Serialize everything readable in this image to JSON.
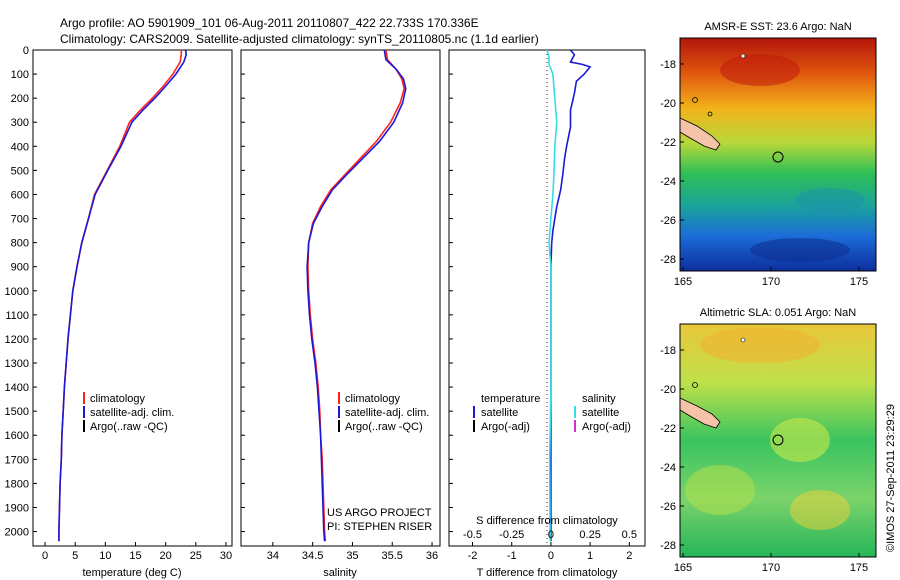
{
  "header": {
    "line1": "Argo profile: AO 5901909_101 06-Aug-2011 20110807_422 22.733S 170.336E",
    "line2": "Climatology: CARS2009. Satellite-adjusted climatology: synTS_20110805.nc (1.1d earlier)"
  },
  "credits": {
    "project": "US ARGO PROJECT",
    "pi": "PI: STEPHEN RISER",
    "stamp": "©IMOS 27-Sep-2011 23:29:29"
  },
  "colors": {
    "climatology": "#ff2020",
    "satellite": "#1a1ad6",
    "argo": "#000000",
    "sal_satellite": "#33dde6",
    "sal_argo": "#cc33cc"
  },
  "legend": {
    "climatology": "climatology",
    "satellite_clim": "satellite-adj. clim.",
    "argo_raw": "Argo(..raw -QC)",
    "temperature": "temperature",
    "salinity": "salinity",
    "satellite": "satellite",
    "argo_adj": "Argo(-adj)"
  },
  "chart_data": [
    {
      "type": "line",
      "xlabel": "temperature (deg C)",
      "xlim": [
        -2,
        31
      ],
      "xticks": [
        0,
        5,
        10,
        15,
        20,
        25,
        30
      ],
      "ylim": [
        0,
        2060
      ],
      "yticks": [
        0,
        100,
        200,
        300,
        400,
        500,
        600,
        700,
        800,
        900,
        1000,
        1100,
        1200,
        1300,
        1400,
        1500,
        1600,
        1700,
        1800,
        1900,
        2000
      ],
      "series": [
        {
          "name": "climatology",
          "color": "red",
          "points": [
            [
              22.6,
              0
            ],
            [
              22.6,
              20
            ],
            [
              22.4,
              50
            ],
            [
              21.2,
              100
            ],
            [
              19.6,
              150
            ],
            [
              17.8,
              200
            ],
            [
              15.8,
              250
            ],
            [
              14.0,
              300
            ],
            [
              12.4,
              400
            ],
            [
              10.3,
              500
            ],
            [
              8.2,
              600
            ],
            [
              7.2,
              700
            ],
            [
              6.1,
              800
            ],
            [
              5.3,
              900
            ],
            [
              4.6,
              1000
            ],
            [
              4.2,
              1100
            ],
            [
              3.8,
              1200
            ],
            [
              3.5,
              1300
            ],
            [
              3.2,
              1400
            ],
            [
              3.0,
              1500
            ],
            [
              2.8,
              1600
            ],
            [
              2.7,
              1700
            ],
            [
              2.5,
              1800
            ],
            [
              2.4,
              1900
            ],
            [
              2.3,
              2000
            ],
            [
              2.3,
              2040
            ]
          ]
        },
        {
          "name": "satellite-adj. clim.",
          "color": "blue",
          "points": [
            [
              23.3,
              0
            ],
            [
              23.4,
              20
            ],
            [
              23.0,
              50
            ],
            [
              21.7,
              100
            ],
            [
              20.0,
              150
            ],
            [
              18.2,
              200
            ],
            [
              16.2,
              250
            ],
            [
              14.4,
              300
            ],
            [
              12.6,
              400
            ],
            [
              10.4,
              500
            ],
            [
              8.3,
              600
            ],
            [
              7.2,
              700
            ],
            [
              6.1,
              800
            ],
            [
              5.3,
              900
            ],
            [
              4.6,
              1000
            ],
            [
              4.2,
              1100
            ],
            [
              3.8,
              1200
            ],
            [
              3.5,
              1300
            ],
            [
              3.2,
              1400
            ],
            [
              3.0,
              1500
            ],
            [
              2.8,
              1600
            ],
            [
              2.7,
              1700
            ],
            [
              2.5,
              1800
            ],
            [
              2.4,
              1900
            ],
            [
              2.3,
              2000
            ],
            [
              2.3,
              2040
            ]
          ]
        }
      ]
    },
    {
      "type": "line",
      "xlabel": "salinity",
      "xlim": [
        33.6,
        36.1
      ],
      "xticks": [
        34,
        34.5,
        35,
        35.5,
        36
      ],
      "ylim": [
        0,
        2060
      ],
      "series": [
        {
          "name": "climatology",
          "color": "red",
          "points": [
            [
              35.42,
              0
            ],
            [
              35.44,
              40
            ],
            [
              35.55,
              80
            ],
            [
              35.62,
              120
            ],
            [
              35.65,
              160
            ],
            [
              35.6,
              220
            ],
            [
              35.48,
              300
            ],
            [
              35.3,
              380
            ],
            [
              35.1,
              450
            ],
            [
              34.9,
              520
            ],
            [
              34.73,
              580
            ],
            [
              34.6,
              650
            ],
            [
              34.5,
              720
            ],
            [
              34.45,
              800
            ],
            [
              34.44,
              900
            ],
            [
              34.45,
              1000
            ],
            [
              34.47,
              1100
            ],
            [
              34.5,
              1200
            ],
            [
              34.54,
              1300
            ],
            [
              34.57,
              1400
            ],
            [
              34.59,
              1500
            ],
            [
              34.6,
              1600
            ],
            [
              34.62,
              1700
            ],
            [
              34.63,
              1800
            ],
            [
              34.64,
              1900
            ],
            [
              34.65,
              2000
            ],
            [
              34.66,
              2040
            ]
          ]
        },
        {
          "name": "satellite-adj. clim.",
          "color": "blue",
          "points": [
            [
              35.4,
              0
            ],
            [
              35.42,
              40
            ],
            [
              35.55,
              80
            ],
            [
              35.64,
              120
            ],
            [
              35.67,
              160
            ],
            [
              35.63,
              220
            ],
            [
              35.52,
              300
            ],
            [
              35.34,
              380
            ],
            [
              35.13,
              450
            ],
            [
              34.92,
              520
            ],
            [
              34.75,
              580
            ],
            [
              34.62,
              650
            ],
            [
              34.51,
              720
            ],
            [
              34.45,
              800
            ],
            [
              34.43,
              900
            ],
            [
              34.44,
              1000
            ],
            [
              34.46,
              1100
            ],
            [
              34.49,
              1200
            ],
            [
              34.53,
              1300
            ],
            [
              34.56,
              1400
            ],
            [
              34.58,
              1500
            ],
            [
              34.6,
              1600
            ],
            [
              34.61,
              1700
            ],
            [
              34.62,
              1800
            ],
            [
              34.63,
              1900
            ],
            [
              34.64,
              2000
            ],
            [
              34.65,
              2040
            ]
          ]
        }
      ]
    },
    {
      "type": "line",
      "xlabel": "T difference from climatology",
      "xlabel_top": "S difference from climatology",
      "xlim": [
        -2.6,
        2.4
      ],
      "xticks": [
        -2,
        -1,
        0,
        1,
        2
      ],
      "sticks": [
        "-0.5",
        "-0.25",
        "0",
        "0.25",
        "0.5"
      ],
      "ylim": [
        0,
        2060
      ],
      "series": [
        {
          "name": "temperature satellite",
          "color": "blue",
          "points": [
            [
              0.5,
              0
            ],
            [
              0.6,
              20
            ],
            [
              0.5,
              50
            ],
            [
              0.8,
              60
            ],
            [
              1.0,
              70
            ],
            [
              0.85,
              100
            ],
            [
              0.65,
              130
            ],
            [
              0.6,
              180
            ],
            [
              0.5,
              250
            ],
            [
              0.5,
              320
            ],
            [
              0.4,
              400
            ],
            [
              0.35,
              450
            ],
            [
              0.3,
              520
            ],
            [
              0.25,
              580
            ],
            [
              0.15,
              650
            ],
            [
              0.1,
              700
            ],
            [
              0.05,
              750
            ],
            [
              0.02,
              800
            ],
            [
              0.0,
              900
            ],
            [
              0.0,
              2040
            ]
          ]
        },
        {
          "name": "salinity satellite",
          "color": "cyan",
          "points": [
            [
              -0.1,
              0
            ],
            [
              -0.05,
              30
            ],
            [
              -0.05,
              60
            ],
            [
              0.05,
              100
            ],
            [
              0.1,
              200
            ],
            [
              0.15,
              300
            ],
            [
              0.1,
              400
            ],
            [
              0.08,
              500
            ],
            [
              0.05,
              600
            ],
            [
              0.0,
              700
            ],
            [
              -0.05,
              800
            ],
            [
              0.0,
              900
            ],
            [
              0.0,
              1400
            ],
            [
              -0.03,
              1700
            ],
            [
              -0.02,
              2040
            ]
          ]
        }
      ]
    }
  ],
  "maps": [
    {
      "title": "AMSR-E SST: 23.6 Argo: NaN",
      "yticks": [
        "-18",
        "-20",
        "-22",
        "-24",
        "-26",
        "-28"
      ],
      "xticks": [
        "165",
        "170",
        "175"
      ]
    },
    {
      "title": "Altimetric SLA: 0.051 Argo: NaN",
      "yticks": [
        "-18",
        "-20",
        "-22",
        "-24",
        "-26",
        "-28"
      ],
      "xticks": [
        "165",
        "170",
        "175"
      ]
    }
  ]
}
